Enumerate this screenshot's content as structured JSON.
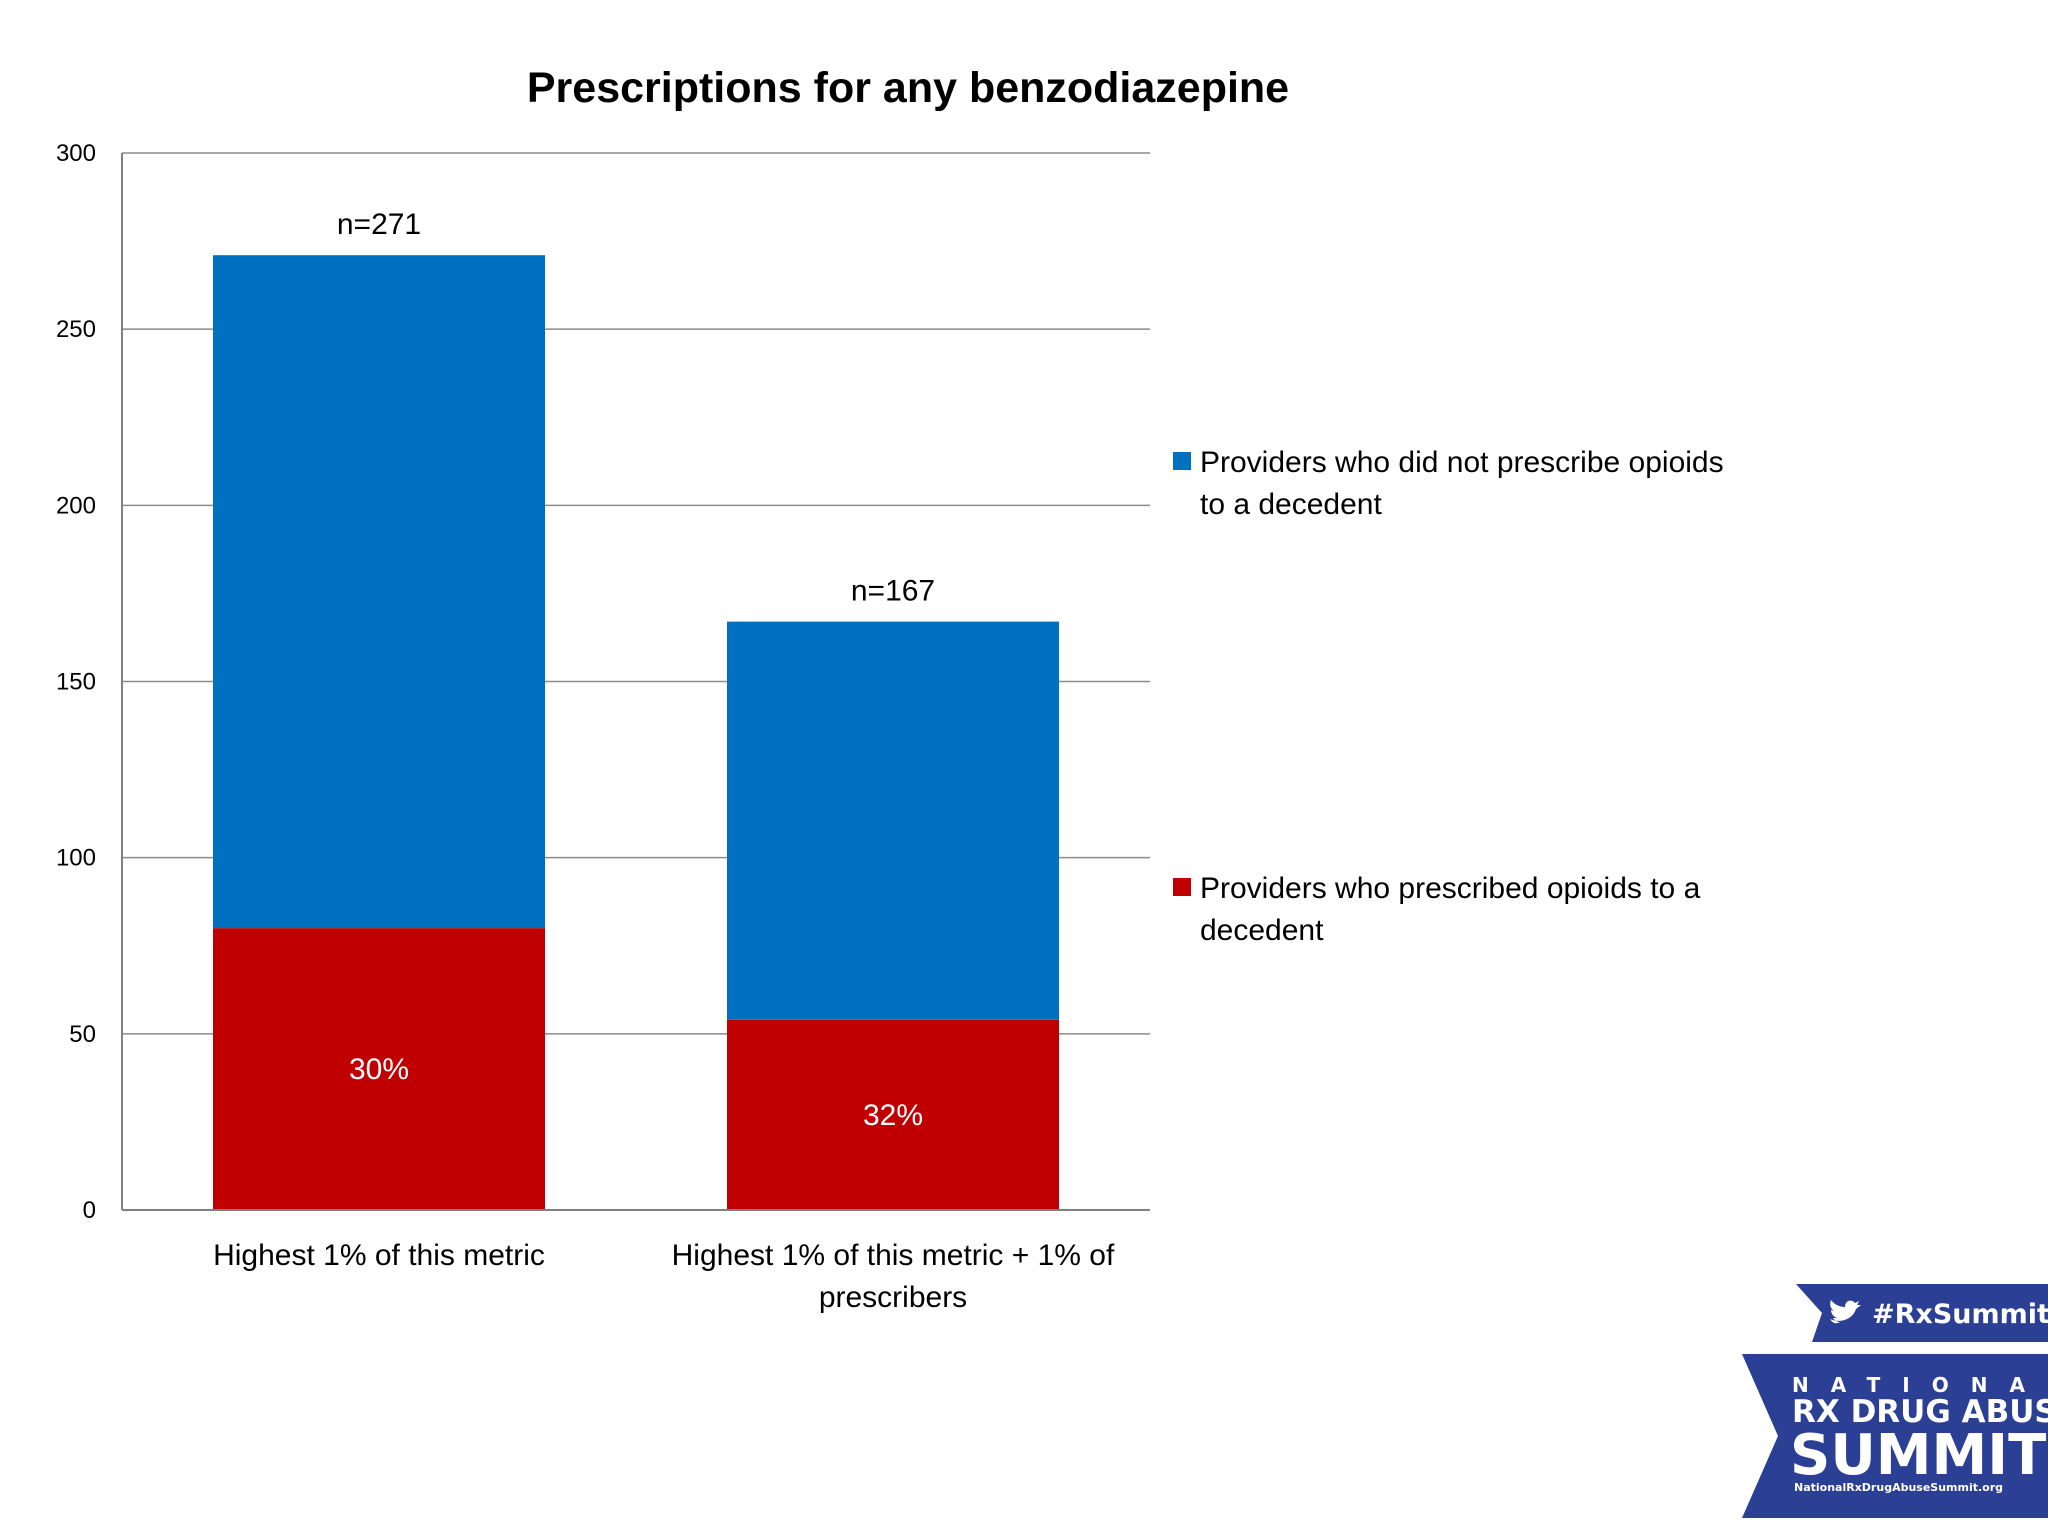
{
  "chart_data": {
    "type": "bar",
    "stacked": true,
    "title": "Prescriptions for any benzodiazepine",
    "xlabel": "",
    "ylabel": "",
    "ylim": [
      0,
      300
    ],
    "yticks": [
      0,
      50,
      100,
      150,
      200,
      250,
      300
    ],
    "categories": [
      [
        "Highest 1% of this metric"
      ],
      [
        "Highest 1% of this metric + 1% of",
        "prescribers"
      ]
    ],
    "series": [
      {
        "name": "Providers who prescribed opioids to a decedent",
        "legend_lines": [
          "Providers who prescribed opioids to a",
          "decedent"
        ],
        "color": "#c00000",
        "values": [
          80,
          54
        ],
        "labels": [
          "30%",
          "32%"
        ]
      },
      {
        "name": "Providers who did not prescribe opioids to a decedent",
        "legend_lines": [
          "Providers who did not prescribe opioids",
          "to a decedent"
        ],
        "color": "#0070c0",
        "values": [
          191,
          113
        ]
      }
    ],
    "totals": [
      271,
      167
    ],
    "total_labels": [
      "n=271",
      "n=167"
    ],
    "grid": true,
    "legend_position": "right"
  },
  "branding": {
    "hashtag": "#RxSummit",
    "line1": "NATIONAL",
    "line2": "RX DRUG ABUSE",
    "line3": "SUMMIT",
    "url": "NationalRxDrugAbuseSummit.org",
    "color": "#2b3f94",
    "icons": [
      "twitter-bird-icon"
    ]
  }
}
